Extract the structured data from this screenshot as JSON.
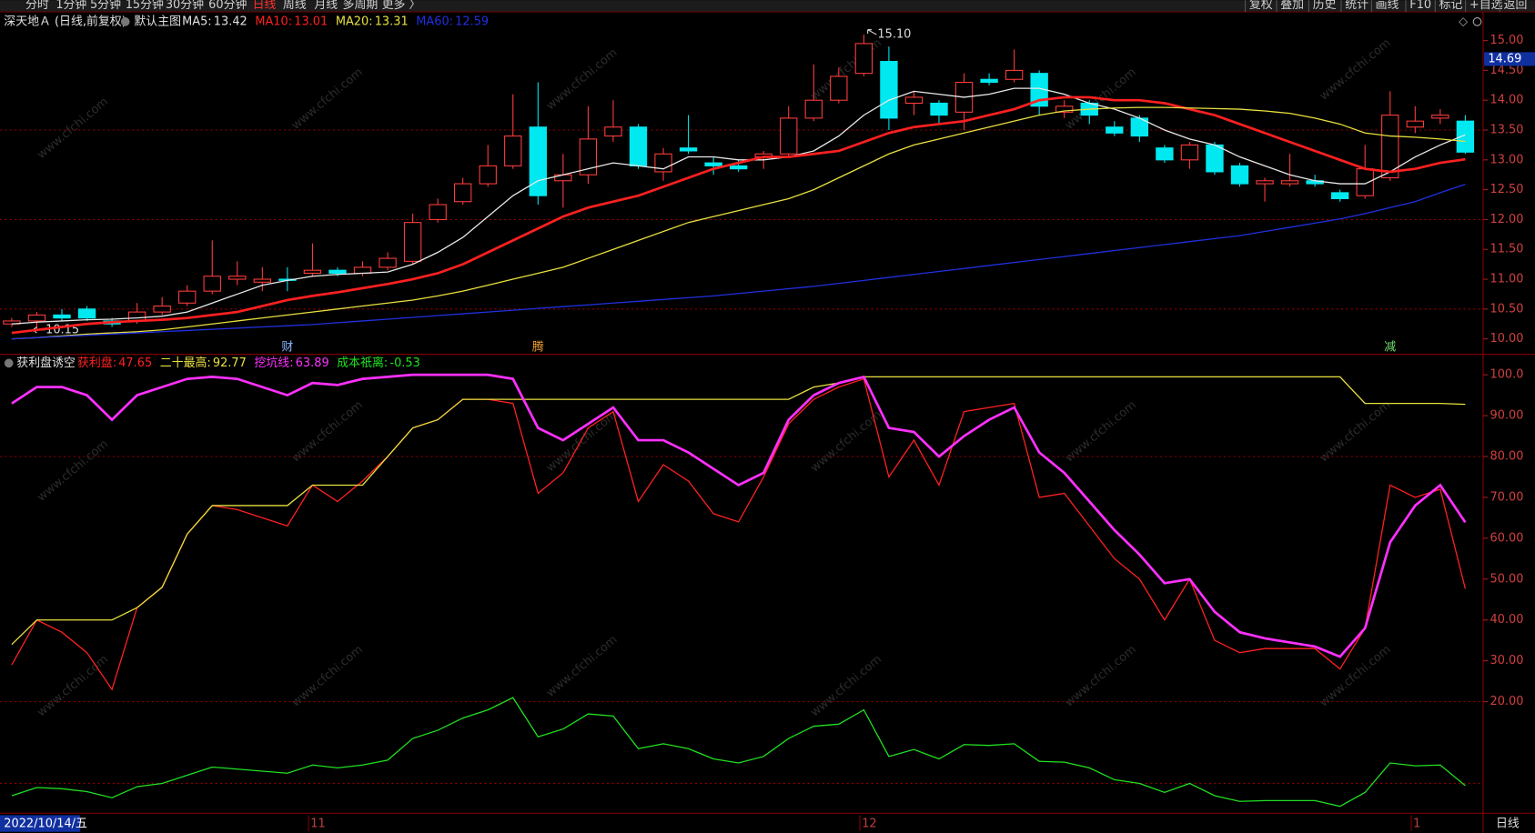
{
  "toolbar": {
    "left": [
      "分时",
      "1分钟",
      "5分钟",
      "15分钟",
      "30分钟",
      "60分钟",
      "日线",
      "周线",
      "月线",
      "多周期",
      "更多 〉"
    ],
    "active": 6,
    "right": [
      "复权",
      "叠加",
      "历史",
      "统计",
      "画线",
      "F10",
      "标记",
      "+自选",
      "返回"
    ]
  },
  "header": {
    "stock": "深天地Ａ (日线,前复权)",
    "template": "默认主图"
  },
  "watermark": "www.cfchi.com",
  "chart_data": [
    {
      "type": "candlestick",
      "open": [
        10.25,
        10.3,
        10.4,
        10.5,
        10.3,
        10.3,
        10.45,
        10.6,
        10.8,
        11.0,
        10.95,
        11.0,
        11.1,
        11.15,
        11.1,
        11.2,
        11.3,
        12.0,
        12.3,
        12.6,
        12.9,
        13.55,
        12.65,
        12.75,
        13.4,
        13.55,
        12.8,
        13.2,
        12.95,
        12.9,
        13.05,
        13.1,
        13.7,
        14.0,
        14.45,
        14.65,
        13.95,
        13.95,
        13.8,
        14.35,
        14.35,
        14.45,
        13.8,
        13.95,
        13.55,
        13.7,
        13.2,
        13.0,
        13.25,
        12.9,
        12.6,
        12.6,
        12.65,
        12.45,
        12.4,
        12.7,
        13.55,
        13.7,
        13.65
      ],
      "high": [
        10.35,
        10.45,
        10.5,
        10.55,
        10.35,
        10.6,
        10.7,
        10.9,
        11.65,
        11.3,
        11.2,
        11.2,
        11.6,
        11.2,
        11.3,
        11.45,
        12.1,
        12.35,
        12.7,
        13.25,
        14.1,
        14.3,
        13.1,
        13.9,
        14.0,
        13.6,
        13.2,
        13.75,
        13.05,
        13.0,
        13.15,
        13.9,
        14.6,
        14.55,
        15.1,
        14.9,
        14.15,
        14.0,
        14.45,
        14.45,
        14.85,
        14.5,
        14.0,
        14.0,
        13.65,
        13.75,
        13.25,
        13.3,
        13.3,
        12.95,
        12.7,
        13.1,
        12.75,
        12.5,
        13.25,
        14.15,
        13.9,
        13.85,
        13.75
      ],
      "low": [
        10.2,
        10.15,
        10.3,
        10.3,
        10.2,
        10.25,
        10.4,
        10.55,
        10.75,
        10.9,
        10.8,
        10.8,
        11.05,
        11.05,
        11.05,
        11.15,
        11.25,
        11.95,
        12.25,
        12.55,
        12.85,
        12.25,
        12.2,
        12.6,
        13.3,
        12.85,
        12.65,
        13.1,
        12.75,
        12.8,
        12.85,
        13.05,
        13.65,
        13.95,
        14.4,
        13.5,
        13.75,
        13.6,
        13.5,
        14.25,
        14.3,
        13.75,
        13.7,
        13.6,
        13.4,
        13.3,
        12.95,
        12.85,
        12.75,
        12.55,
        12.3,
        12.55,
        12.55,
        12.3,
        12.35,
        12.65,
        13.45,
        13.6,
        13.1
      ],
      "close": [
        10.3,
        10.4,
        10.35,
        10.35,
        10.25,
        10.45,
        10.55,
        10.8,
        11.05,
        11.05,
        11.0,
        10.98,
        11.15,
        11.1,
        11.2,
        11.35,
        11.95,
        12.25,
        12.6,
        12.9,
        13.4,
        12.4,
        12.75,
        13.35,
        13.55,
        12.9,
        13.1,
        13.15,
        12.9,
        12.85,
        13.1,
        13.7,
        14.0,
        14.4,
        14.95,
        13.7,
        14.05,
        13.75,
        14.3,
        14.3,
        14.5,
        13.9,
        13.9,
        13.75,
        13.45,
        13.4,
        13.0,
        13.25,
        12.8,
        12.6,
        12.65,
        12.65,
        12.6,
        12.35,
        12.85,
        13.75,
        13.65,
        13.75,
        13.13
      ],
      "up_color": "#ff3c3c",
      "down_color": "#00e8f0",
      "series": [
        {
          "name": "MA5:",
          "color": "#e8e8e8",
          "values": [
            10.25,
            10.28,
            10.3,
            10.32,
            10.33,
            10.35,
            10.38,
            10.45,
            10.6,
            10.75,
            10.9,
            10.98,
            11.05,
            11.08,
            11.1,
            11.12,
            11.25,
            11.45,
            11.7,
            12.05,
            12.4,
            12.65,
            12.75,
            12.85,
            12.95,
            12.9,
            12.85,
            13.05,
            13.05,
            13.0,
            13.0,
            13.05,
            13.15,
            13.4,
            13.75,
            14.0,
            14.15,
            14.1,
            14.05,
            14.1,
            14.2,
            14.2,
            14.1,
            13.95,
            13.85,
            13.7,
            13.5,
            13.35,
            13.25,
            13.05,
            12.9,
            12.75,
            12.65,
            12.6,
            12.6,
            12.8,
            13.05,
            13.25,
            13.42
          ]
        },
        {
          "name": "MA10:",
          "color": "#ff2020",
          "values": [
            10.1,
            10.15,
            10.2,
            10.25,
            10.28,
            10.3,
            10.32,
            10.35,
            10.4,
            10.45,
            10.55,
            10.65,
            10.72,
            10.78,
            10.85,
            10.92,
            11.0,
            11.1,
            11.25,
            11.45,
            11.65,
            11.85,
            12.05,
            12.2,
            12.3,
            12.4,
            12.55,
            12.7,
            12.85,
            12.95,
            13.05,
            13.05,
            13.1,
            13.15,
            13.3,
            13.45,
            13.55,
            13.6,
            13.65,
            13.75,
            13.85,
            14.0,
            14.05,
            14.05,
            14.0,
            14.0,
            13.95,
            13.85,
            13.75,
            13.6,
            13.45,
            13.3,
            13.15,
            13.0,
            12.85,
            12.8,
            12.85,
            12.95,
            13.01
          ]
        },
        {
          "name": "MA20:",
          "color": "#e8e040",
          "values": [
            10.0,
            10.02,
            10.05,
            10.08,
            10.1,
            10.12,
            10.15,
            10.2,
            10.25,
            10.3,
            10.35,
            10.4,
            10.45,
            10.5,
            10.55,
            10.6,
            10.65,
            10.72,
            10.8,
            10.9,
            11.0,
            11.1,
            11.2,
            11.35,
            11.5,
            11.65,
            11.8,
            11.95,
            12.05,
            12.15,
            12.25,
            12.35,
            12.5,
            12.7,
            12.9,
            13.1,
            13.25,
            13.35,
            13.45,
            13.55,
            13.65,
            13.75,
            13.82,
            13.85,
            13.87,
            13.88,
            13.88,
            13.87,
            13.86,
            13.85,
            13.82,
            13.78,
            13.7,
            13.6,
            13.45,
            13.4,
            13.38,
            13.35,
            13.31
          ]
        },
        {
          "name": "MA60:",
          "color": "#2030e0",
          "values": [
            10.0,
            10.02,
            10.04,
            10.06,
            10.08,
            10.1,
            10.12,
            10.14,
            10.16,
            10.18,
            10.2,
            10.22,
            10.24,
            10.27,
            10.3,
            10.33,
            10.36,
            10.39,
            10.42,
            10.45,
            10.48,
            10.51,
            10.54,
            10.57,
            10.6,
            10.63,
            10.66,
            10.69,
            10.72,
            10.76,
            10.8,
            10.84,
            10.88,
            10.93,
            10.98,
            11.03,
            11.08,
            11.13,
            11.18,
            11.23,
            11.28,
            11.33,
            11.38,
            11.43,
            11.48,
            11.53,
            11.58,
            11.63,
            11.68,
            11.73,
            11.8,
            11.87,
            11.94,
            12.01,
            12.1,
            12.2,
            12.3,
            12.45,
            12.59
          ]
        }
      ],
      "ylim": [
        9.74,
        15.48
      ],
      "yticks": [
        {
          "value": 10,
          "label": "10.00"
        },
        {
          "value": 10.5,
          "label": "10.50"
        },
        {
          "value": 11,
          "label": "11.00"
        },
        {
          "value": 11.5,
          "label": "11.50"
        },
        {
          "value": 12,
          "label": "12.00"
        },
        {
          "value": 12.5,
          "label": "12.50"
        },
        {
          "value": 13,
          "label": "13.00"
        },
        {
          "value": 13.5,
          "label": "13.50"
        },
        {
          "value": 14,
          "label": "14.00"
        },
        {
          "value": 14.5,
          "label": "14.50"
        },
        {
          "value": 15,
          "label": "15.00"
        }
      ],
      "grid_lines": [
        10.5,
        12,
        13.5
      ],
      "cursor_price": 14.69,
      "annotations": [
        {
          "value": 15.1,
          "label": "15.10"
        },
        {
          "value": 10.15,
          "label": "10.15"
        }
      ],
      "events": [
        null,
        null,
        null,
        null,
        null,
        null,
        null,
        null,
        null,
        null,
        null,
        {
          "text": "财",
          "color": "#8ab4ff"
        },
        null,
        null,
        null,
        null,
        null,
        null,
        null,
        null,
        null,
        {
          "text": "腾",
          "color": "#f0a030"
        },
        null,
        null,
        null,
        null,
        null,
        null,
        null,
        null,
        null,
        null,
        null,
        null,
        null,
        null,
        null,
        null,
        null,
        null,
        null,
        null,
        null,
        null,
        null,
        null,
        null,
        null,
        null,
        null,
        null,
        null,
        null,
        null,
        null,
        {
          "text": "减",
          "color": "#70e070"
        },
        null,
        null,
        null
      ],
      "categories": [
        null,
        null,
        null,
        null,
        null,
        null,
        null,
        null,
        null,
        null,
        null,
        null,
        "11",
        null,
        null,
        null,
        null,
        null,
        null,
        null,
        null,
        null,
        null,
        null,
        null,
        null,
        null,
        null,
        null,
        null,
        null,
        null,
        null,
        null,
        "12",
        null,
        null,
        null,
        null,
        null,
        null,
        null,
        null,
        null,
        null,
        null,
        null,
        null,
        null,
        null,
        null,
        null,
        null,
        null,
        null,
        null,
        "1",
        null,
        null
      ],
      "cursor_date": "2022/10/14/五",
      "period": "日线"
    },
    {
      "type": "line",
      "title": "获利盘诱空",
      "series": [
        {
          "name": "获利盘:",
          "color": "#ff2020",
          "values": [
            29,
            40,
            37,
            32,
            23,
            43,
            48,
            61,
            68,
            67,
            65,
            63,
            73,
            69,
            74,
            80,
            87,
            89,
            94,
            94,
            93,
            71,
            76,
            87,
            91,
            69,
            78,
            74,
            66,
            64,
            75,
            88,
            94,
            97,
            99,
            75,
            84,
            73,
            91,
            92,
            93,
            70,
            71,
            63,
            55,
            50,
            40,
            50,
            35,
            32,
            33,
            33,
            33,
            28,
            38,
            73,
            70,
            72,
            47.65
          ]
        },
        {
          "name": "二十最高:",
          "color": "#e8e040",
          "values": [
            34,
            40,
            40,
            40,
            40,
            43,
            48,
            61,
            68,
            68,
            68,
            68,
            73,
            73,
            73,
            80,
            87,
            89,
            94,
            94,
            94,
            94,
            94,
            94,
            94,
            94,
            94,
            94,
            94,
            94,
            94,
            94,
            97,
            98,
            99.5,
            99.5,
            99.5,
            99.5,
            99.5,
            99.5,
            99.5,
            99.5,
            99.5,
            99.5,
            99.5,
            99.5,
            99.5,
            99.5,
            99.5,
            99.5,
            99.5,
            99.5,
            99.5,
            99.5,
            93,
            93,
            93,
            93,
            92.77
          ]
        },
        {
          "name": "挖坑线:",
          "color": "#ff30ff",
          "width": 2.5,
          "values": [
            93,
            97,
            97,
            95,
            89,
            95,
            97,
            99,
            99.5,
            99,
            97,
            95,
            98,
            97.5,
            99,
            99.5,
            100,
            100,
            100,
            100,
            99,
            87,
            84,
            88,
            92,
            84,
            84,
            81,
            77,
            73,
            76,
            89,
            95,
            98,
            99.5,
            87,
            86,
            80,
            85,
            89,
            92,
            81,
            76,
            69,
            62,
            56,
            49,
            50,
            42,
            37,
            35.5,
            34.5,
            33.5,
            31,
            38,
            59,
            68,
            73,
            63.89
          ]
        },
        {
          "name": "成本祇离:",
          "color": "#20e020",
          "values": [
            -3,
            -1,
            -1.3,
            -2,
            -3.5,
            -0.8,
            0,
            2,
            4,
            3.5,
            3,
            2.5,
            4.5,
            3.8,
            4.5,
            5.7,
            11,
            13,
            16,
            18,
            21,
            11.4,
            13.3,
            17,
            16.5,
            8.5,
            9.7,
            8.5,
            6,
            5,
            6.6,
            11,
            14,
            14.5,
            18,
            6.6,
            8.3,
            6,
            9.5,
            9.3,
            9.7,
            5.4,
            5.2,
            3.8,
            0.9,
            0,
            -2.2,
            0,
            -3,
            -4.4,
            -4.2,
            -4.2,
            -4.2,
            -5.6,
            -2.2,
            5,
            4.3,
            4.5,
            -0.53
          ]
        }
      ],
      "ylim": [
        -7.3,
        105
      ],
      "yticks": [
        {
          "value": 20,
          "label": "20.00"
        },
        {
          "value": 30,
          "label": "30.00"
        },
        {
          "value": 40,
          "label": "40.00"
        },
        {
          "value": 50,
          "label": "50.00"
        },
        {
          "value": 60,
          "label": "60.00"
        },
        {
          "value": 70,
          "label": "70.00"
        },
        {
          "value": 80,
          "label": "80.00"
        },
        {
          "value": 90,
          "label": "90.00"
        },
        {
          "value": 100,
          "label": "100.0"
        }
      ],
      "grid_lines": [
        80,
        20,
        0
      ]
    }
  ]
}
